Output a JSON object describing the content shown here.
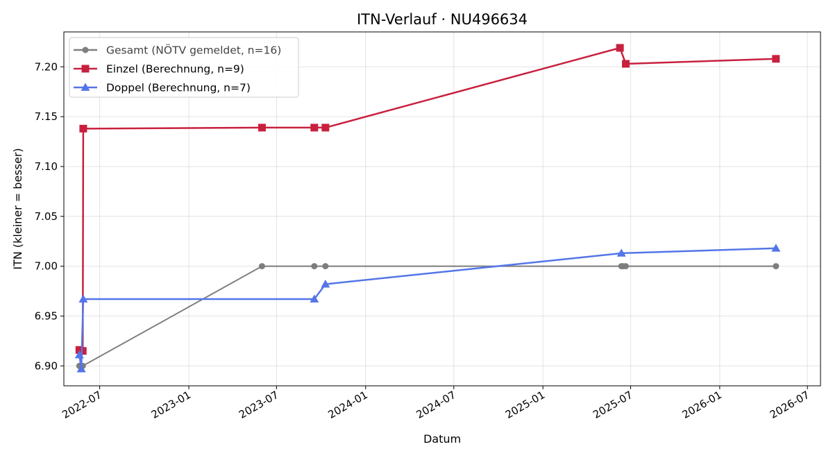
{
  "chart_data": {
    "type": "line",
    "title": "ITN-Verlauf · NU496634",
    "xlabel": "Datum",
    "ylabel": "ITN  (kleiner = besser)",
    "ylim": [
      6.88,
      7.235
    ],
    "xlim": [
      "2022-04-18",
      "2026-07-28"
    ],
    "grid": true,
    "legend_position": "top-left",
    "x_tick_labels": [
      "2022-07",
      "2023-01",
      "2023-07",
      "2024-01",
      "2024-07",
      "2025-01",
      "2025-07",
      "2026-01",
      "2026-07"
    ],
    "y_tick_labels": [
      "6.90",
      "6.95",
      "7.00",
      "7.05",
      "7.10",
      "7.15",
      "7.20"
    ],
    "series": [
      {
        "name": "Gesamt (NÖTV gemeldet, n=16)",
        "color": "#555555",
        "marker": "circle",
        "points": [
          {
            "x": "2022-05-20",
            "y": 6.9
          },
          {
            "x": "2022-05-24",
            "y": 6.9
          },
          {
            "x": "2022-05-27",
            "y": 6.9
          },
          {
            "x": "2023-06-01",
            "y": 7.0
          },
          {
            "x": "2023-09-17",
            "y": 7.0
          },
          {
            "x": "2023-10-10",
            "y": 7.0
          },
          {
            "x": "2025-06-12",
            "y": 7.0
          },
          {
            "x": "2025-06-15",
            "y": 7.0
          },
          {
            "x": "2025-06-21",
            "y": 7.0
          },
          {
            "x": "2026-04-27",
            "y": 7.0
          }
        ]
      },
      {
        "name": "Einzel (Berechnung, n=9)",
        "color": "#c8203e",
        "marker": "square",
        "points": [
          {
            "x": "2022-05-20",
            "y": 6.916
          },
          {
            "x": "2022-05-27",
            "y": 6.915
          },
          {
            "x": "2022-05-28",
            "y": 7.138
          },
          {
            "x": "2023-06-01",
            "y": 7.139
          },
          {
            "x": "2023-09-17",
            "y": 7.139
          },
          {
            "x": "2023-10-10",
            "y": 7.139
          },
          {
            "x": "2025-06-09",
            "y": 7.219
          },
          {
            "x": "2025-06-21",
            "y": 7.203
          },
          {
            "x": "2026-04-27",
            "y": 7.208
          }
        ]
      },
      {
        "name": "Doppel (Berechnung, n=7)",
        "color": "#5475e8",
        "marker": "triangle",
        "points": [
          {
            "x": "2022-05-20",
            "y": 6.911
          },
          {
            "x": "2022-05-24",
            "y": 6.897
          },
          {
            "x": "2022-05-28",
            "y": 6.967
          },
          {
            "x": "2023-09-17",
            "y": 6.967
          },
          {
            "x": "2023-10-10",
            "y": 6.982
          },
          {
            "x": "2025-06-12",
            "y": 7.013
          },
          {
            "x": "2026-04-27",
            "y": 7.018
          }
        ]
      }
    ]
  }
}
